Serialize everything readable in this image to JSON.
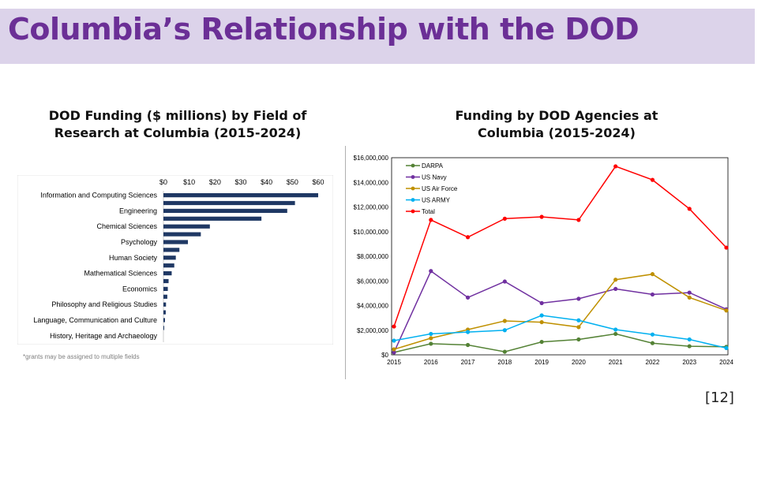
{
  "slide": {
    "title": "Columbia’s Relationship with the DOD",
    "footnote": "*grants may be assigned to multiple fields",
    "slide_number": "[12]"
  },
  "chart_data": [
    {
      "type": "bar",
      "orientation": "horizontal",
      "title": "DOD Funding ($ millions) by Field of Research at Columbia (2015-2024)",
      "bar_color": "#1f3864",
      "xlim": [
        0,
        60
      ],
      "x_ticks": [
        "$0",
        "$10",
        "$20",
        "$30",
        "$40",
        "$50",
        "$60"
      ],
      "axis_position": "top",
      "labeled_categories": [
        "Information and Computing Sciences",
        "Engineering",
        "Chemical Sciences",
        "Psychology",
        "Human Society",
        "Mathematical Sciences",
        "Economics",
        "Philosophy and Religious Studies",
        "Language, Communication and Culture",
        "History, Heritage and Archaeology"
      ],
      "values": [
        60,
        51,
        48,
        38,
        18,
        14.5,
        9.5,
        6.2,
        4.8,
        4.2,
        3.2,
        2,
        1.7,
        1.5,
        1,
        0.9,
        0.6,
        0.3
      ]
    },
    {
      "type": "line",
      "title": "Funding by DOD Agencies at Columbia (2015-2024)",
      "x": [
        2015,
        2016,
        2017,
        2018,
        2019,
        2020,
        2021,
        2022,
        2023,
        2024
      ],
      "ylim": [
        0,
        16000000
      ],
      "y_ticks": [
        "$0",
        "$2,000,000",
        "$4,000,000",
        "$6,000,000",
        "$8,000,000",
        "$10,000,000",
        "$12,000,000",
        "$14,000,000",
        "$16,000,000"
      ],
      "legend_position": "top-left",
      "series": [
        {
          "name": "DARPA",
          "color": "#548235",
          "values": [
            200000,
            900000,
            800000,
            250000,
            1050000,
            1250000,
            1700000,
            950000,
            700000,
            650000
          ]
        },
        {
          "name": "US Navy",
          "color": "#7030a0",
          "values": [
            200000,
            6800000,
            4650000,
            5950000,
            4200000,
            4550000,
            5350000,
            4900000,
            5050000,
            3700000
          ]
        },
        {
          "name": "US Air Force",
          "color": "#bf9000",
          "values": [
            450000,
            1350000,
            2050000,
            2750000,
            2650000,
            2250000,
            6100000,
            6550000,
            4650000,
            3600000
          ]
        },
        {
          "name": "US ARMY",
          "color": "#00b0f0",
          "values": [
            1150000,
            1700000,
            1850000,
            2000000,
            3200000,
            2800000,
            2050000,
            1650000,
            1250000,
            550000
          ]
        },
        {
          "name": "Total",
          "color": "#ff0000",
          "values": [
            2300000,
            10950000,
            9550000,
            11050000,
            11200000,
            10950000,
            15300000,
            14200000,
            11850000,
            8700000
          ]
        }
      ]
    }
  ]
}
